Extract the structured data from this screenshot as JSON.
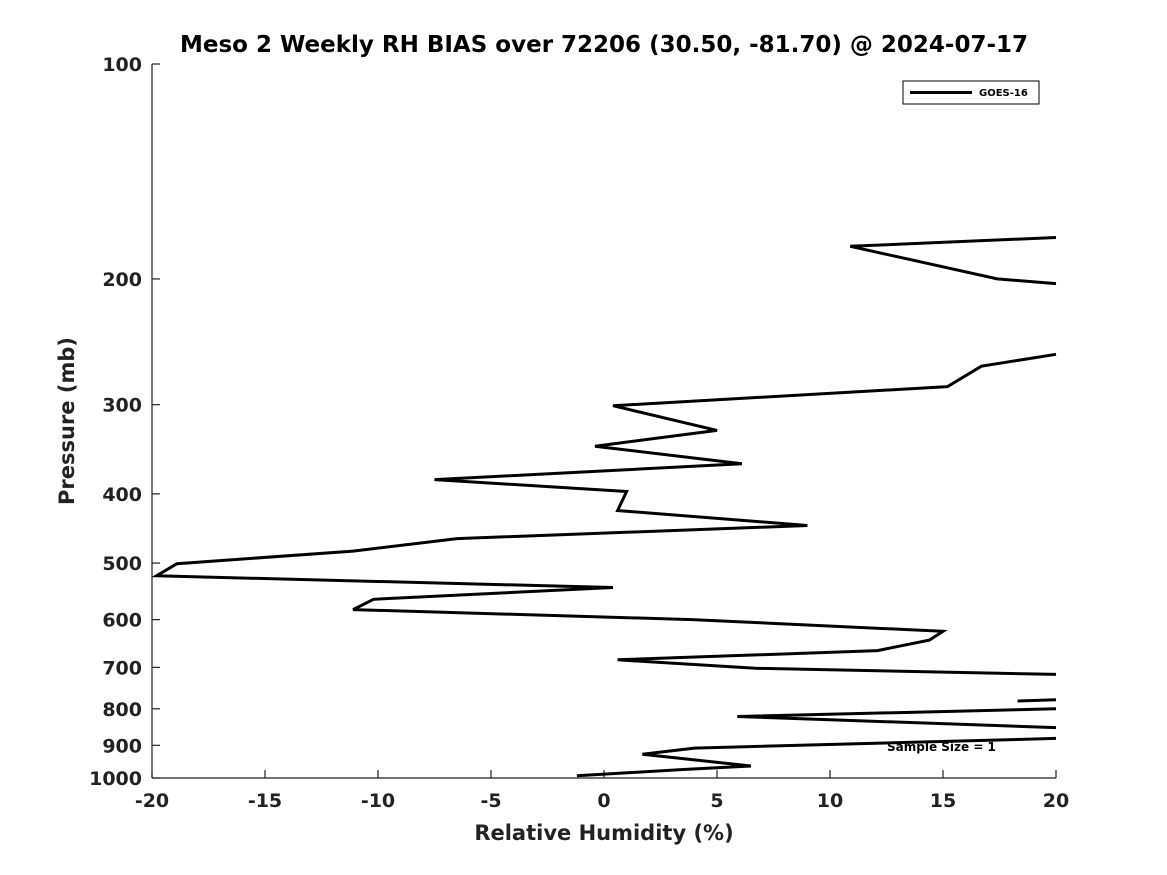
{
  "chart_data": {
    "type": "line",
    "title": "Meso 2 Weekly RH BIAS over 72206 (30.50, -81.70) @ 2024-07-17",
    "xlabel": "Relative Humidity (%)",
    "ylabel": "Pressure (mb)",
    "xlim": [
      -20,
      20
    ],
    "ylim": [
      100,
      1000
    ],
    "y_scale": "log",
    "y_reversed": true,
    "x_ticks": [
      -20,
      -15,
      -10,
      -5,
      0,
      5,
      10,
      15,
      20
    ],
    "x_tick_labels": [
      "-20",
      "-15",
      "-10",
      "-5",
      "0",
      "5",
      "10",
      "15",
      "20"
    ],
    "y_ticks": [
      100,
      200,
      300,
      400,
      500,
      600,
      700,
      800,
      900,
      1000
    ],
    "y_tick_labels": [
      "100",
      "200",
      "300",
      "400",
      "500",
      "600",
      "700",
      "800",
      "900",
      "1000"
    ],
    "grid": false,
    "legend_position": "top-right",
    "annotation": "Sample Size = 1",
    "series": [
      {
        "name": "GOES-16",
        "color": "#000000",
        "segments": [
          [
            [
              20,
              175
            ],
            [
              10.9,
              180
            ],
            [
              17.4,
              200
            ],
            [
              20,
              203
            ]
          ],
          [
            [
              20,
              255
            ],
            [
              16.7,
              265
            ],
            [
              15.2,
              283
            ],
            [
              0.4,
              301
            ],
            [
              5,
              326
            ],
            [
              -0.4,
              343
            ],
            [
              6.1,
              363
            ],
            [
              -7.5,
              382
            ],
            [
              1,
              397
            ],
            [
              0.6,
              422
            ],
            [
              9,
              443
            ],
            [
              -6.5,
              462
            ],
            [
              -11.1,
              481
            ],
            [
              -18.9,
              501
            ],
            [
              -19.8,
              521
            ],
            [
              0.4,
              541
            ],
            [
              -10.2,
              562
            ],
            [
              -11.1,
              581
            ],
            [
              3.9,
              600
            ],
            [
              15,
              623
            ],
            [
              14.4,
              641
            ],
            [
              12.1,
              663
            ],
            [
              0.6,
              683
            ],
            [
              6.7,
              702
            ],
            [
              20,
              716
            ]
          ],
          [
            [
              18.3,
              780
            ],
            [
              20,
              777
            ]
          ],
          [
            [
              20,
              800
            ],
            [
              5.9,
              820
            ],
            [
              20,
              850
            ]
          ],
          [
            [
              20,
              880
            ],
            [
              4,
              908
            ],
            [
              1.7,
              926
            ],
            [
              6.5,
              962
            ],
            [
              3.5,
              973
            ],
            [
              -1.2,
              993
            ]
          ]
        ]
      }
    ]
  }
}
